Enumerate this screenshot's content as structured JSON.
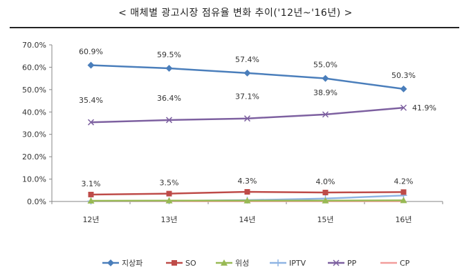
{
  "title": "< 매체별 광고시장 점유율 변화 추이('12년~'16년) >",
  "chart_data": {
    "type": "line",
    "categories": [
      "12년",
      "13년",
      "14년",
      "15년",
      "16년"
    ],
    "ylim": [
      0,
      70
    ],
    "y_ticks": [
      "0.0%",
      "10.0%",
      "20.0%",
      "30.0%",
      "40.0%",
      "50.0%",
      "60.0%",
      "70.0%"
    ],
    "grid": false,
    "legend_position": "bottom",
    "series": [
      {
        "name": "지상파",
        "values": [
          60.9,
          59.5,
          57.4,
          55.0,
          50.3
        ],
        "labels": [
          "60.9%",
          "59.5%",
          "57.4%",
          "55.0%",
          "50.3%"
        ],
        "color": "#4a7ebb",
        "marker": "diamond"
      },
      {
        "name": "SO",
        "values": [
          3.1,
          3.5,
          4.3,
          4.0,
          4.2
        ],
        "labels": [
          "3.1%",
          "3.5%",
          "4.3%",
          "4.0%",
          "4.2%"
        ],
        "color": "#be4b48",
        "marker": "square"
      },
      {
        "name": "위성",
        "values": [
          0.3,
          0.4,
          0.4,
          0.4,
          0.5
        ],
        "labels": [],
        "color": "#98b954",
        "marker": "triangle"
      },
      {
        "name": "IPTV",
        "values": [
          0.2,
          0.3,
          0.6,
          1.3,
          2.7
        ],
        "labels": [],
        "color": "#8eb4e3",
        "marker": "plus"
      },
      {
        "name": "PP",
        "values": [
          35.4,
          36.4,
          37.1,
          38.9,
          41.9
        ],
        "labels": [
          "35.4%",
          "36.4%",
          "37.1%",
          "38.9%",
          "41.9%"
        ],
        "color": "#7d60a0",
        "marker": "x"
      },
      {
        "name": "CP",
        "values": [
          0.1,
          0.1,
          0.1,
          0.1,
          0.1
        ],
        "labels": [],
        "color": "#f29c9a",
        "marker": "none"
      }
    ]
  }
}
